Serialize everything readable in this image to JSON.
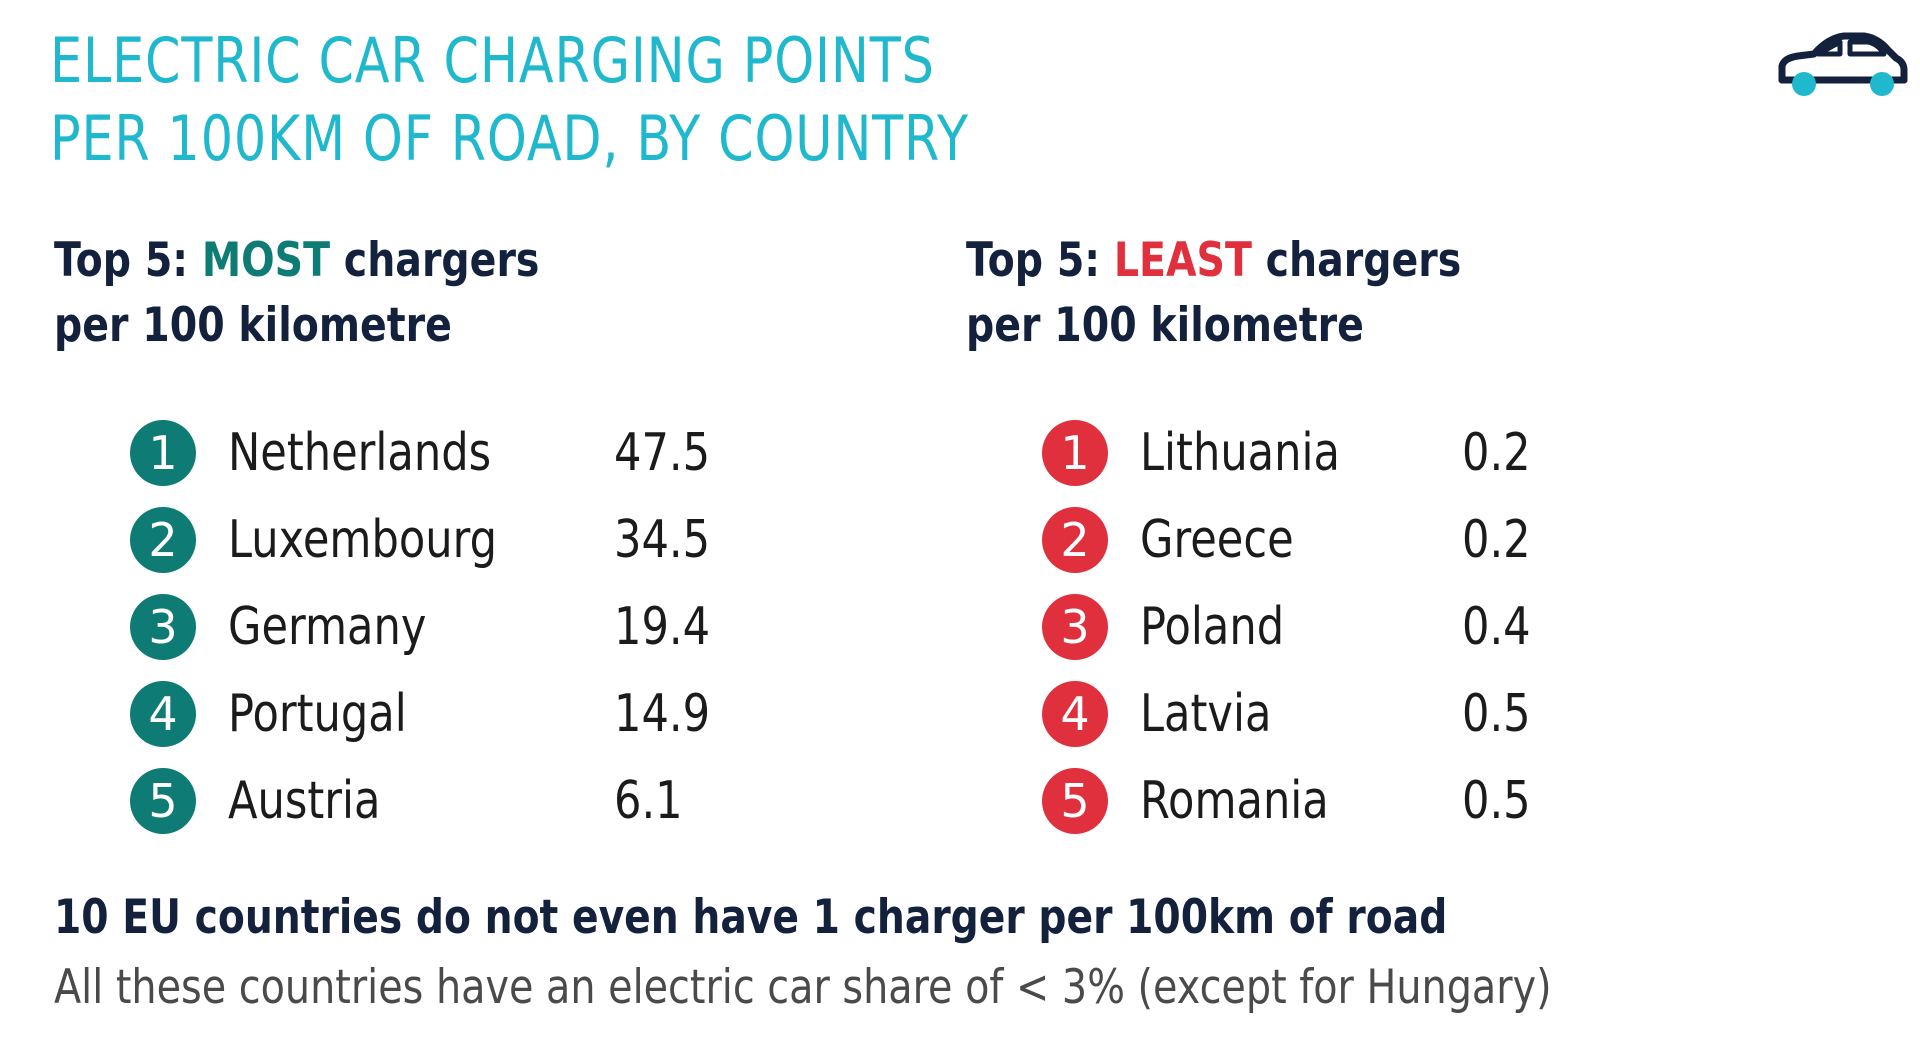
{
  "title": {
    "line1": "ELECTRIC CAR CHARGING POINTS",
    "line2": "PER 100KM OF ROAD, BY COUNTRY"
  },
  "icons": {
    "car": "car-icon"
  },
  "colors": {
    "title": "#1FB8CD",
    "most": "#0E7C74",
    "least": "#E0303E",
    "heading": "#14213D",
    "note": "#4a4a4a"
  },
  "most": {
    "heading_prefix": "Top 5: ",
    "heading_highlight": "MOST",
    "heading_suffix": " chargers",
    "heading_line2": "per 100 kilometre",
    "items": [
      {
        "rank": "1",
        "country": "Netherlands",
        "value": "47.5"
      },
      {
        "rank": "2",
        "country": "Luxembourg",
        "value": "34.5"
      },
      {
        "rank": "3",
        "country": "Germany",
        "value": "19.4"
      },
      {
        "rank": "4",
        "country": "Portugal",
        "value": "14.9"
      },
      {
        "rank": "5",
        "country": "Austria",
        "value": "6.1"
      }
    ]
  },
  "least": {
    "heading_prefix": "Top 5: ",
    "heading_highlight": "LEAST",
    "heading_suffix": " chargers",
    "heading_line2": "per 100 kilometre",
    "items": [
      {
        "rank": "1",
        "country": "Lithuania",
        "value": "0.2"
      },
      {
        "rank": "2",
        "country": "Greece",
        "value": "0.2"
      },
      {
        "rank": "3",
        "country": "Poland",
        "value": "0.4"
      },
      {
        "rank": "4",
        "country": "Latvia",
        "value": "0.5"
      },
      {
        "rank": "5",
        "country": "Romania",
        "value": "0.5"
      }
    ]
  },
  "footer": {
    "bold": "10 EU countries do not even have 1 charger per 100km of road",
    "note": "All these countries have an electric car share of < 3% (except for Hungary)"
  }
}
